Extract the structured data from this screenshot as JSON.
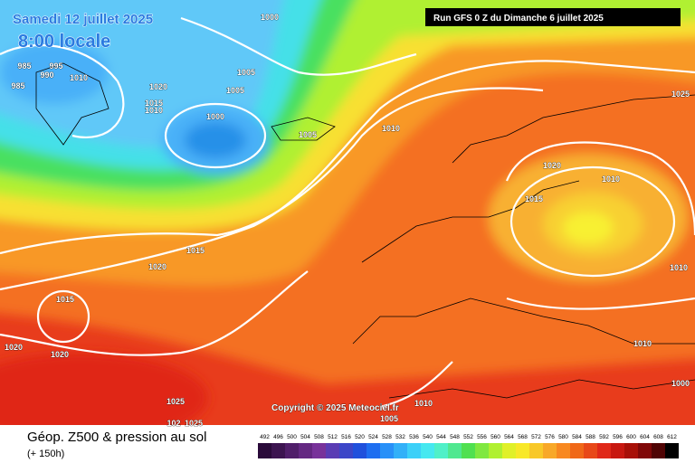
{
  "header": {
    "date": "Samedi 12 juillet 2025",
    "time": "8:00 locale",
    "run": "Run GFS 0 Z du Dimanche 6 juillet 2025"
  },
  "isobar_labels": [
    "1000",
    "985",
    "995",
    "990",
    "1010",
    "985",
    "1020",
    "1015",
    "1010",
    "1005",
    "1005",
    "1000",
    "1005",
    "1010",
    "1025",
    "1020",
    "1010",
    "1015",
    "1015",
    "1020",
    "1015",
    "1020",
    "1020",
    "1010",
    "1010",
    "1010",
    "1005",
    "1025",
    "102",
    "1025",
    "1000"
  ],
  "copyright": "Copyright © 2025 Meteociel.fr",
  "footer": {
    "title": "Géop. Z500 & pression au sol",
    "lead": "(+ 150h)"
  },
  "legend": {
    "values": [
      492,
      496,
      500,
      504,
      508,
      512,
      516,
      520,
      524,
      528,
      532,
      536,
      540,
      544,
      548,
      552,
      556,
      560,
      564,
      568,
      572,
      576,
      580,
      584,
      588,
      592,
      596,
      600,
      604,
      608,
      612
    ],
    "colors": [
      "#2a0a3a",
      "#3c1450",
      "#501e6a",
      "#642882",
      "#78329a",
      "#5a3cb4",
      "#3c46c8",
      "#2050dc",
      "#1e6ef0",
      "#2890f8",
      "#32b0f8",
      "#3cd0f8",
      "#46e8f0",
      "#50f0c8",
      "#50e890",
      "#50e050",
      "#80e840",
      "#b0f030",
      "#e0f028",
      "#f8e828",
      "#f8c828",
      "#f8a828",
      "#f88820",
      "#f06818",
      "#e84818",
      "#e02818",
      "#c81810",
      "#a81008",
      "#800808",
      "#500404",
      "#000000"
    ]
  }
}
